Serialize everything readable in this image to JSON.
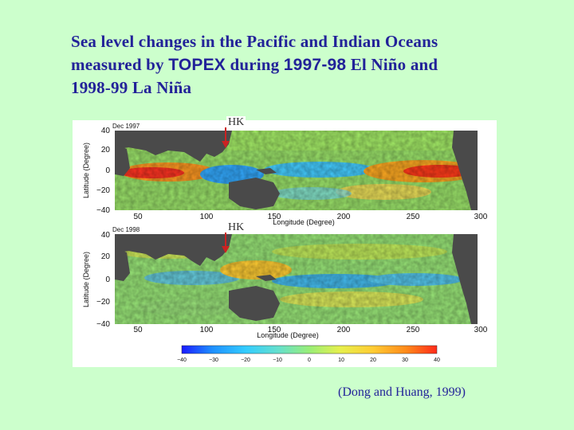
{
  "slide": {
    "title_line1": "Sea level changes in the Pacific and Indian Oceans",
    "title_line2_prefix": "measured by ",
    "title_topex": "TOPEX",
    "title_line2_mid": " during ",
    "title_years": "1997-98",
    "title_line2_suffix": " El Niño and",
    "title_line3": "1998-99 La Niña",
    "citation": "(Dong and Huang, 1999)"
  },
  "figure": {
    "panels": [
      {
        "date_label": "Dec 1997",
        "hk_label": "HK",
        "ylabel": "Latitude (Degree)",
        "xlabel": "Longitude (Degree)",
        "y_ticks": [
          "40",
          "20",
          "0",
          "−20",
          "−40"
        ],
        "x_ticks": [
          "50",
          "100",
          "150",
          "200",
          "250",
          "300"
        ]
      },
      {
        "date_label": "Dec 1998",
        "hk_label": "HK",
        "ylabel": "Latitude (Degree)",
        "xlabel": "Longitude (Degree)",
        "y_ticks": [
          "40",
          "20",
          "0",
          "−20",
          "−40"
        ],
        "x_ticks": [
          "50",
          "100",
          "150",
          "200",
          "250",
          "300"
        ]
      }
    ],
    "colorbar": {
      "ticks": [
        "−40",
        "−30",
        "−20",
        "−10",
        "0",
        "10",
        "20",
        "30",
        "40"
      ],
      "colors": [
        "#1a1aff",
        "#1e90ff",
        "#33ccff",
        "#66e0cc",
        "#99ee77",
        "#e6f04d",
        "#ffcc33",
        "#ff8a1a",
        "#ff2a1a"
      ]
    }
  }
}
